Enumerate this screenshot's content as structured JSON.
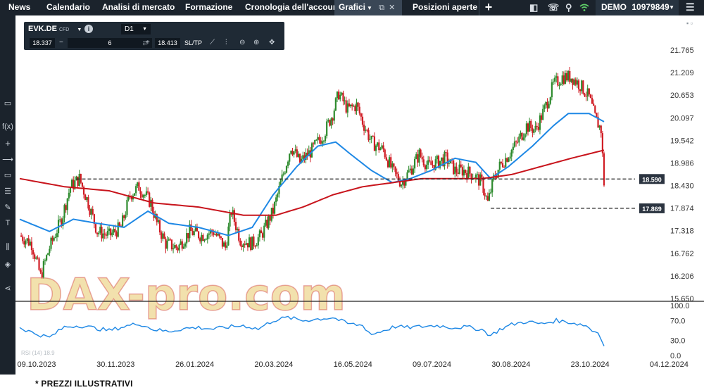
{
  "nav": {
    "tabs": [
      {
        "label": "News"
      },
      {
        "label": "Calendario"
      },
      {
        "label": "Analisi di mercato"
      },
      {
        "label": "Formazione"
      },
      {
        "label": "Cronologia dell'account"
      },
      {
        "label": "Grafici"
      },
      {
        "label": "Posizioni aperte"
      }
    ],
    "account_label": "DEMO",
    "account_number": "10979849"
  },
  "toolbar": {
    "symbol": "EVK.DE",
    "symbol_type": "CFD",
    "info_glyph": "i",
    "timeframe": "D1",
    "sell_price": "18.337",
    "minus": "−",
    "quantity": "6",
    "plus": "+",
    "buy_price": "18.413",
    "sltp_label": "SL/TP",
    "icons": [
      "trend-line-icon",
      "indicators-icon",
      "zoom-out-icon",
      "zoom-in-icon",
      "crosshair-icon"
    ]
  },
  "left_tools": [
    "screen-icon",
    "f(x)",
    "+",
    "horizontal-line-icon",
    "rectangle-icon",
    "fibonacci-icon",
    "pen-icon",
    "T",
    "bar-chart-icon",
    "layers-icon",
    "share-icon"
  ],
  "watermark": "DAX-pro.com",
  "footer_note": "* PREZZI ILLUSTRATIVI",
  "chart_data": {
    "type": "candlestick",
    "symbol": "EVK.DE",
    "timeframe": "D1",
    "x_labels": [
      "09.10.2023",
      "30.11.2023",
      "26.01.2024",
      "20.03.2024",
      "16.05.2024",
      "09.07.2024",
      "30.08.2024",
      "23.10.2024",
      "04.12.2024"
    ],
    "y_ticks": [
      "21.765",
      "21.209",
      "20.653",
      "20.097",
      "19.542",
      "18.986",
      "18.430",
      "17.874",
      "17.318",
      "16.762",
      "16.206",
      "15.650"
    ],
    "y_range": [
      15.65,
      21.765
    ],
    "price_path": [
      [
        0,
        17.2
      ],
      [
        8,
        17.0
      ],
      [
        14,
        16.2
      ],
      [
        20,
        16.9
      ],
      [
        28,
        17.6
      ],
      [
        34,
        18.4
      ],
      [
        40,
        18.6
      ],
      [
        46,
        18.0
      ],
      [
        52,
        17.3
      ],
      [
        60,
        17.2
      ],
      [
        68,
        17.4
      ],
      [
        74,
        18.2
      ],
      [
        80,
        18.4
      ],
      [
        88,
        18.0
      ],
      [
        92,
        17.5
      ],
      [
        98,
        17.0
      ],
      [
        106,
        16.9
      ],
      [
        114,
        17.3
      ],
      [
        122,
        17.2
      ],
      [
        130,
        17.3
      ],
      [
        138,
        16.9
      ],
      [
        142,
        17.8
      ],
      [
        148,
        17.1
      ],
      [
        156,
        17.0
      ],
      [
        162,
        17.2
      ],
      [
        170,
        17.8
      ],
      [
        176,
        18.6
      ],
      [
        182,
        19.4
      ],
      [
        188,
        19.0
      ],
      [
        196,
        19.3
      ],
      [
        204,
        19.7
      ],
      [
        210,
        20.2
      ],
      [
        214,
        20.7
      ],
      [
        220,
        20.3
      ],
      [
        226,
        20.4
      ],
      [
        230,
        20.0
      ],
      [
        236,
        19.5
      ],
      [
        244,
        19.3
      ],
      [
        250,
        18.8
      ],
      [
        256,
        18.5
      ],
      [
        262,
        18.8
      ],
      [
        268,
        19.2
      ],
      [
        274,
        18.9
      ],
      [
        280,
        19.0
      ],
      [
        286,
        19.1
      ],
      [
        292,
        18.8
      ],
      [
        298,
        18.8
      ],
      [
        304,
        18.7
      ],
      [
        310,
        18.5
      ],
      [
        314,
        18.0
      ],
      [
        318,
        18.6
      ],
      [
        322,
        18.9
      ],
      [
        328,
        19.2
      ],
      [
        334,
        19.5
      ],
      [
        340,
        19.9
      ],
      [
        346,
        19.8
      ],
      [
        352,
        20.3
      ],
      [
        358,
        20.9
      ],
      [
        364,
        21.1
      ],
      [
        370,
        21.1
      ],
      [
        376,
        20.9
      ],
      [
        382,
        20.6
      ],
      [
        386,
        20.1
      ],
      [
        390,
        19.8
      ],
      [
        392,
        18.5
      ]
    ],
    "ma_blue": [
      [
        0,
        17.6
      ],
      [
        20,
        17.3
      ],
      [
        36,
        17.6
      ],
      [
        52,
        17.5
      ],
      [
        70,
        17.4
      ],
      [
        86,
        17.8
      ],
      [
        100,
        17.5
      ],
      [
        120,
        17.4
      ],
      [
        140,
        17.2
      ],
      [
        156,
        17.4
      ],
      [
        170,
        18.2
      ],
      [
        186,
        18.9
      ],
      [
        200,
        19.4
      ],
      [
        212,
        19.5
      ],
      [
        222,
        19.2
      ],
      [
        236,
        18.8
      ],
      [
        250,
        18.5
      ],
      [
        262,
        18.6
      ],
      [
        276,
        18.8
      ],
      [
        292,
        19.1
      ],
      [
        306,
        19.0
      ],
      [
        316,
        18.6
      ],
      [
        328,
        18.9
      ],
      [
        344,
        19.4
      ],
      [
        358,
        19.9
      ],
      [
        368,
        20.2
      ],
      [
        382,
        20.2
      ],
      [
        392,
        20.0
      ]
    ],
    "ma_red": [
      [
        0,
        18.6
      ],
      [
        30,
        18.4
      ],
      [
        60,
        18.3
      ],
      [
        90,
        18.0
      ],
      [
        120,
        17.9
      ],
      [
        150,
        17.7
      ],
      [
        172,
        17.7
      ],
      [
        190,
        17.9
      ],
      [
        210,
        18.2
      ],
      [
        230,
        18.4
      ],
      [
        250,
        18.5
      ],
      [
        270,
        18.6
      ],
      [
        290,
        18.6
      ],
      [
        310,
        18.6
      ],
      [
        330,
        18.7
      ],
      [
        350,
        18.9
      ],
      [
        370,
        19.1
      ],
      [
        392,
        19.3
      ]
    ],
    "price_levels": [
      {
        "label": "18.590",
        "value": 18.59
      },
      {
        "label": "17.869",
        "value": 17.869
      }
    ],
    "indicator": {
      "name": "RSI (14) 18.9",
      "y_ticks": [
        "100.0",
        "70.0",
        "30.0",
        "0.0"
      ],
      "y_range": [
        0,
        100
      ],
      "values": [
        [
          0,
          56
        ],
        [
          10,
          44
        ],
        [
          20,
          36
        ],
        [
          30,
          57
        ],
        [
          40,
          60
        ],
        [
          50,
          55
        ],
        [
          60,
          50
        ],
        [
          70,
          58
        ],
        [
          80,
          64
        ],
        [
          90,
          52
        ],
        [
          100,
          48
        ],
        [
          110,
          54
        ],
        [
          120,
          56
        ],
        [
          130,
          53
        ],
        [
          140,
          57
        ],
        [
          150,
          60
        ],
        [
          160,
          53
        ],
        [
          170,
          70
        ],
        [
          180,
          76
        ],
        [
          190,
          70
        ],
        [
          200,
          73
        ],
        [
          210,
          76
        ],
        [
          220,
          64
        ],
        [
          230,
          60
        ],
        [
          236,
          42
        ],
        [
          244,
          50
        ],
        [
          252,
          58
        ],
        [
          260,
          56
        ],
        [
          270,
          58
        ],
        [
          280,
          60
        ],
        [
          290,
          56
        ],
        [
          300,
          57
        ],
        [
          310,
          52
        ],
        [
          316,
          40
        ],
        [
          322,
          52
        ],
        [
          330,
          62
        ],
        [
          340,
          68
        ],
        [
          350,
          63
        ],
        [
          360,
          70
        ],
        [
          370,
          66
        ],
        [
          380,
          60
        ],
        [
          384,
          50
        ],
        [
          388,
          45
        ],
        [
          392,
          18.9
        ]
      ]
    }
  },
  "colors": {
    "up": "#2e8b2e",
    "down": "#d01c24",
    "ma_blue": "#1e88e5",
    "ma_red": "#c8141c",
    "topbar": "#1b232c",
    "label_bg": "#2b3440"
  }
}
